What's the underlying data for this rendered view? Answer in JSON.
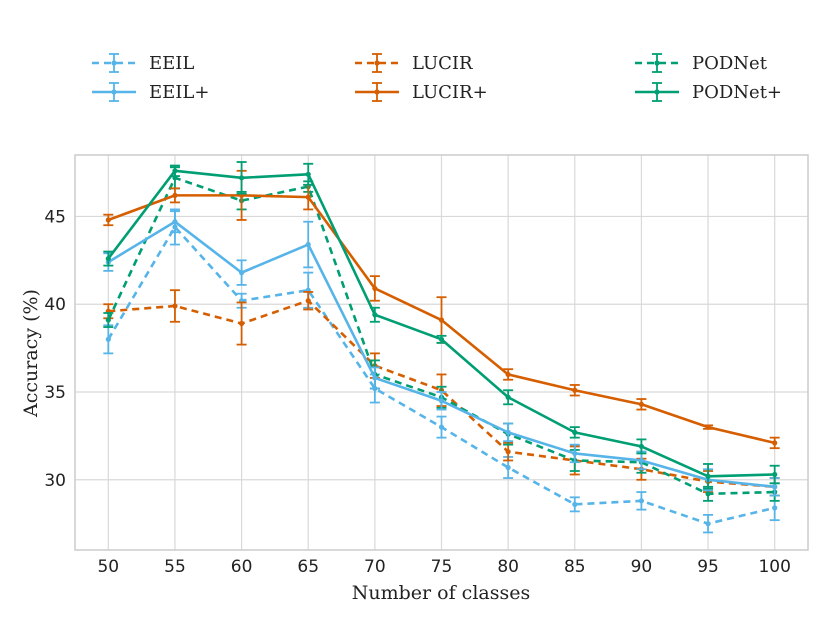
{
  "chart_data": {
    "type": "line",
    "title": "",
    "xlabel": "Number of classes",
    "ylabel": "Accuracy (%)",
    "x": [
      50,
      55,
      60,
      65,
      70,
      75,
      80,
      85,
      90,
      95,
      100
    ],
    "xlim": [
      47.5,
      102.5
    ],
    "ylim": [
      26.0,
      48.5
    ],
    "xticks": [
      "50",
      "55",
      "60",
      "65",
      "70",
      "75",
      "80",
      "85",
      "90",
      "95",
      "100"
    ],
    "yticks": [
      30,
      35,
      40,
      45
    ],
    "ytick_labels": [
      "30",
      "35",
      "40",
      "45"
    ],
    "grid": true,
    "legend_position": "top",
    "series": [
      {
        "name": "EEIL",
        "color": "#56B4E9",
        "dashed": true,
        "values": [
          38.0,
          44.4,
          40.2,
          40.8,
          35.2,
          33.0,
          30.7,
          28.6,
          28.8,
          27.5,
          28.4
        ],
        "errors": [
          0.8,
          1.0,
          0.4,
          1.0,
          0.8,
          0.6,
          0.6,
          0.4,
          0.5,
          0.5,
          0.7
        ]
      },
      {
        "name": "EEIL+",
        "color": "#56B4E9",
        "dashed": false,
        "values": [
          42.4,
          44.7,
          41.8,
          43.4,
          35.8,
          34.5,
          32.7,
          31.5,
          31.1,
          30.0,
          29.6
        ],
        "errors": [
          0.5,
          0.6,
          0.7,
          1.3,
          0.6,
          0.5,
          0.5,
          0.5,
          0.5,
          0.6,
          0.5
        ]
      },
      {
        "name": "LUCIR",
        "color": "#D55E00",
        "dashed": true,
        "values": [
          39.6,
          39.9,
          38.9,
          40.2,
          36.5,
          35.1,
          31.6,
          31.1,
          30.6,
          29.9,
          29.6
        ],
        "errors": [
          0.4,
          0.9,
          1.2,
          0.5,
          0.7,
          0.9,
          0.5,
          0.8,
          0.6,
          0.6,
          0.5
        ]
      },
      {
        "name": "LUCIR+",
        "color": "#D55E00",
        "dashed": false,
        "values": [
          44.8,
          46.2,
          46.2,
          46.1,
          40.9,
          39.1,
          36.0,
          35.1,
          34.3,
          33.0,
          32.1
        ],
        "errors": [
          0.3,
          0.4,
          1.4,
          0.7,
          0.7,
          1.3,
          0.3,
          0.3,
          0.3,
          0.1,
          0.3
        ]
      },
      {
        "name": "PODNet",
        "color": "#009E73",
        "dashed": true,
        "values": [
          39.1,
          47.2,
          45.9,
          46.7,
          36.0,
          34.7,
          32.6,
          31.1,
          31.0,
          29.2,
          29.3
        ],
        "errors": [
          0.4,
          0.6,
          0.5,
          0.3,
          0.8,
          0.6,
          0.6,
          0.6,
          0.6,
          0.4,
          0.5
        ]
      },
      {
        "name": "PODNet+",
        "color": "#009E73",
        "dashed": false,
        "values": [
          42.6,
          47.6,
          47.2,
          47.4,
          39.4,
          38.0,
          34.7,
          32.7,
          31.9,
          30.2,
          30.3
        ],
        "errors": [
          0.4,
          0.3,
          0.9,
          0.6,
          0.4,
          0.2,
          0.4,
          0.3,
          0.4,
          0.7,
          0.5
        ]
      }
    ]
  }
}
